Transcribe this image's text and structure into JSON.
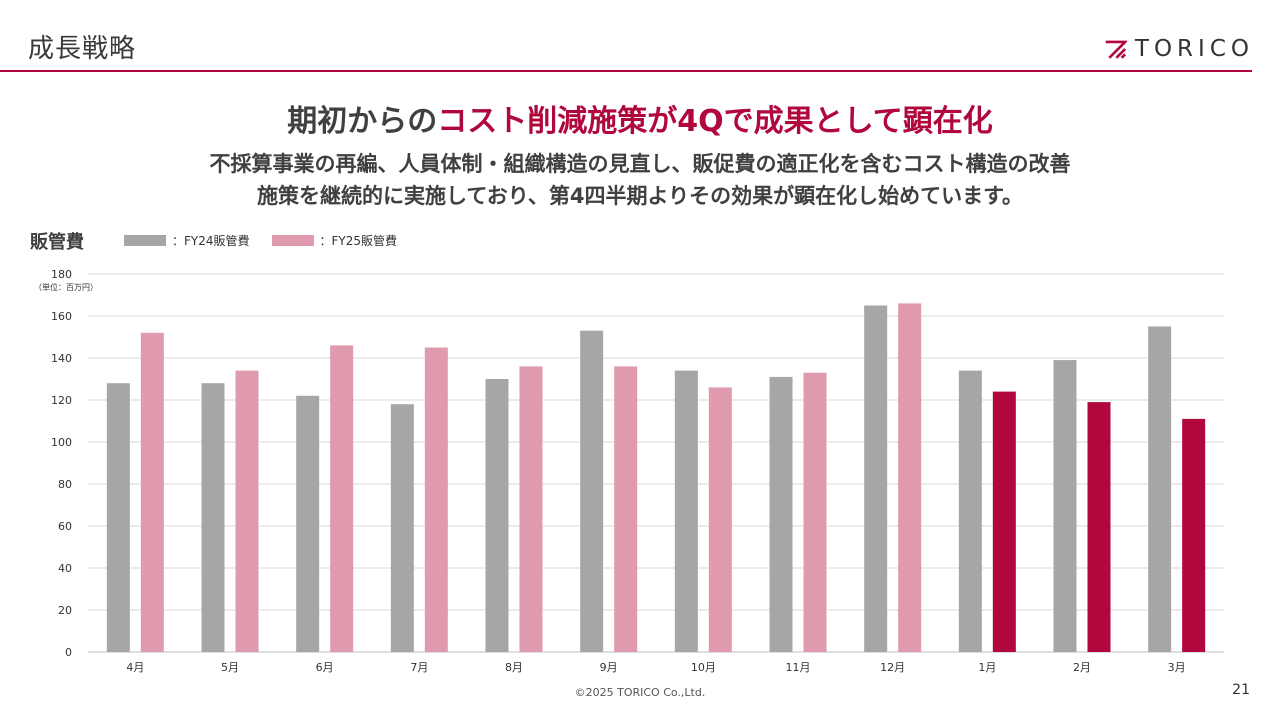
{
  "header": {
    "section_title": "成長戦略",
    "logo_text": "TORICO",
    "logo_icon": "torico-mark-icon",
    "accent_color": "#b0083d"
  },
  "headline": {
    "part1": "期初からの",
    "part2": "コスト削減施策が4Qで成果として顕在化"
  },
  "subtext": {
    "line1": "不採算事業の再編、人員体制・組織構造の見直し、販促費の適正化を含むコスト構造の改善",
    "line2": "施策を継続的に実施しており、第4四半期よりその効果が顕在化し始めています。"
  },
  "chart_data": {
    "type": "bar",
    "title": "販管費",
    "unit": "（単位：百万円）",
    "categories": [
      "4月",
      "5月",
      "6月",
      "7月",
      "8月",
      "9月",
      "10月",
      "11月",
      "12月",
      "1月",
      "2月",
      "3月"
    ],
    "series": [
      {
        "name": "：FY24販管費",
        "color": "#a6a6a6",
        "values": [
          128,
          128,
          122,
          118,
          130,
          153,
          134,
          131,
          165,
          134,
          139,
          155
        ]
      },
      {
        "name": "：FY25販管費",
        "color": "#e09aae",
        "highlight_color": "#b0083d",
        "highlight_from_index": 9,
        "values": [
          152,
          134,
          146,
          145,
          136,
          136,
          126,
          133,
          166,
          124,
          119,
          111
        ]
      }
    ],
    "ylim": [
      0,
      180
    ],
    "yticks": [
      0,
      20,
      40,
      60,
      80,
      100,
      120,
      140,
      160,
      180
    ],
    "grid": true,
    "legend_position": "top-left"
  },
  "footer": {
    "copyright": "©2025 TORICO Co.,Ltd.",
    "page_number": "21"
  }
}
